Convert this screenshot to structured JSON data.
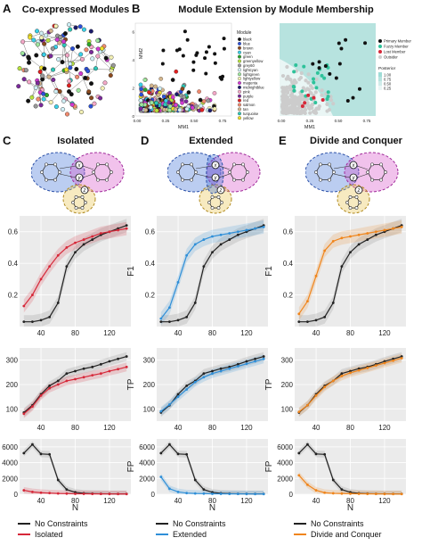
{
  "panels": {
    "A": {
      "letter": "A",
      "title": "Co-expressed Modules"
    },
    "B": {
      "letter": "B",
      "title": "Module Extension by Module Membership"
    },
    "C": {
      "letter": "C",
      "title": "Isolated"
    },
    "D": {
      "letter": "D",
      "title": "Extended"
    },
    "E": {
      "letter": "E",
      "title": "Divide and Conquer"
    }
  },
  "colors": {
    "no_constraints": "#222222",
    "isolated": "#d62839",
    "extended": "#2f8fd8",
    "divide": "#f0851b",
    "module_blue": "#3b6fd6",
    "module_pink": "#d64fc9",
    "module_yellow": "#e8c24b",
    "panel_teal": "#b7e3df"
  },
  "scatter_left": {
    "xlabel": "MM1",
    "ylabel": "MM2",
    "xticks": [
      "0.00",
      "0.25",
      "0.50",
      "0.75"
    ],
    "yticks": [
      "0.0",
      "0.2",
      "0.4",
      "0.6"
    ],
    "legend_title": "Module",
    "legend": [
      {
        "name": "black",
        "color": "#111111"
      },
      {
        "name": "blue",
        "color": "#2b50d8"
      },
      {
        "name": "brown",
        "color": "#8b4a1f"
      },
      {
        "name": "cyan",
        "color": "#39d0e8"
      },
      {
        "name": "green",
        "color": "#2aa52a"
      },
      {
        "name": "greenyellow",
        "color": "#b7e23d"
      },
      {
        "name": "grey60",
        "color": "#999999"
      },
      {
        "name": "lightcyan",
        "color": "#cfeff5"
      },
      {
        "name": "lightgreen",
        "color": "#9ee69e"
      },
      {
        "name": "lightyellow",
        "color": "#f3f0b5"
      },
      {
        "name": "magenta",
        "color": "#d23ad2"
      },
      {
        "name": "midnightblue",
        "color": "#1b1b6b"
      },
      {
        "name": "pink",
        "color": "#f3a8c7"
      },
      {
        "name": "purple",
        "color": "#7a2a9a"
      },
      {
        "name": "red",
        "color": "#e02020"
      },
      {
        "name": "salmon",
        "color": "#f08a6e"
      },
      {
        "name": "tan",
        "color": "#d2b48c"
      },
      {
        "name": "turquoise",
        "color": "#2ec6b7"
      },
      {
        "name": "yellow",
        "color": "#f0e02a"
      }
    ]
  },
  "scatter_right": {
    "xlabel": "MM1",
    "xticks": [
      "0.00",
      "0.25",
      "0.50",
      "0.75"
    ],
    "legend": [
      {
        "name": "Primary Member",
        "color": "#111111"
      },
      {
        "name": "Fuzzy Member",
        "color": "#2ec29a"
      },
      {
        "name": "Lost Member",
        "color": "#d62839"
      },
      {
        "name": "Outsider",
        "color": "#cccccc"
      }
    ],
    "posterior_title": "Posterior",
    "posterior_ticks": [
      "1.00",
      "0.75",
      "0.50",
      "0.25"
    ]
  },
  "nodes": {
    "x": "x",
    "y": "y",
    "z": "z"
  },
  "charts": {
    "x": [
      20,
      30,
      40,
      50,
      60,
      70,
      80,
      90,
      100,
      110,
      120,
      130,
      140
    ],
    "xticks": [
      40,
      80,
      120
    ],
    "xlabel": "N",
    "f1": {
      "ylabel": "F1",
      "ylim": [
        0.0,
        0.7
      ],
      "yticks": [
        "0.2",
        "0.4",
        "0.6"
      ],
      "no_constraints": [
        0.03,
        0.03,
        0.04,
        0.06,
        0.15,
        0.38,
        0.47,
        0.52,
        0.55,
        0.58,
        0.6,
        0.62,
        0.64
      ],
      "isolated": [
        0.13,
        0.2,
        0.3,
        0.38,
        0.45,
        0.5,
        0.53,
        0.55,
        0.57,
        0.59,
        0.6,
        0.61,
        0.62
      ],
      "extended": [
        0.05,
        0.12,
        0.28,
        0.45,
        0.52,
        0.55,
        0.57,
        0.58,
        0.59,
        0.6,
        0.61,
        0.62,
        0.63
      ],
      "divide": [
        0.08,
        0.16,
        0.32,
        0.48,
        0.54,
        0.56,
        0.57,
        0.58,
        0.59,
        0.6,
        0.61,
        0.62,
        0.63
      ]
    },
    "tp": {
      "ylabel": "TP",
      "ylim": [
        50,
        350
      ],
      "yticks": [
        "100",
        "200",
        "300"
      ],
      "no_constraints": [
        85,
        115,
        160,
        195,
        215,
        245,
        255,
        265,
        272,
        283,
        295,
        305,
        315
      ],
      "isolated": [
        80,
        110,
        155,
        185,
        200,
        215,
        222,
        230,
        238,
        245,
        255,
        263,
        272
      ],
      "extended": [
        90,
        118,
        150,
        180,
        210,
        230,
        245,
        255,
        265,
        275,
        285,
        295,
        305
      ],
      "divide": [
        88,
        115,
        155,
        190,
        215,
        235,
        248,
        258,
        268,
        278,
        288,
        298,
        308
      ]
    },
    "fp": {
      "ylabel": "FP",
      "ylim": [
        0,
        7000
      ],
      "yticks": [
        "0",
        "2000",
        "4000",
        "6000"
      ],
      "no_constraints": [
        5200,
        6300,
        5100,
        5050,
        1800,
        600,
        250,
        120,
        80,
        60,
        50,
        40,
        40
      ],
      "isolated": [
        500,
        300,
        200,
        150,
        100,
        80,
        60,
        50,
        45,
        40,
        35,
        30,
        30
      ],
      "extended": [
        2200,
        700,
        300,
        150,
        100,
        80,
        60,
        50,
        45,
        40,
        35,
        30,
        30
      ],
      "divide": [
        2400,
        1200,
        500,
        200,
        120,
        90,
        70,
        55,
        45,
        40,
        35,
        30,
        30
      ]
    }
  },
  "legends": {
    "C": {
      "a": "No Constraints",
      "b": "Isolated"
    },
    "D": {
      "a": "No Constraints",
      "b": "Extended"
    },
    "E": {
      "a": "No Constraints",
      "b": "Divide and Conquer"
    }
  }
}
